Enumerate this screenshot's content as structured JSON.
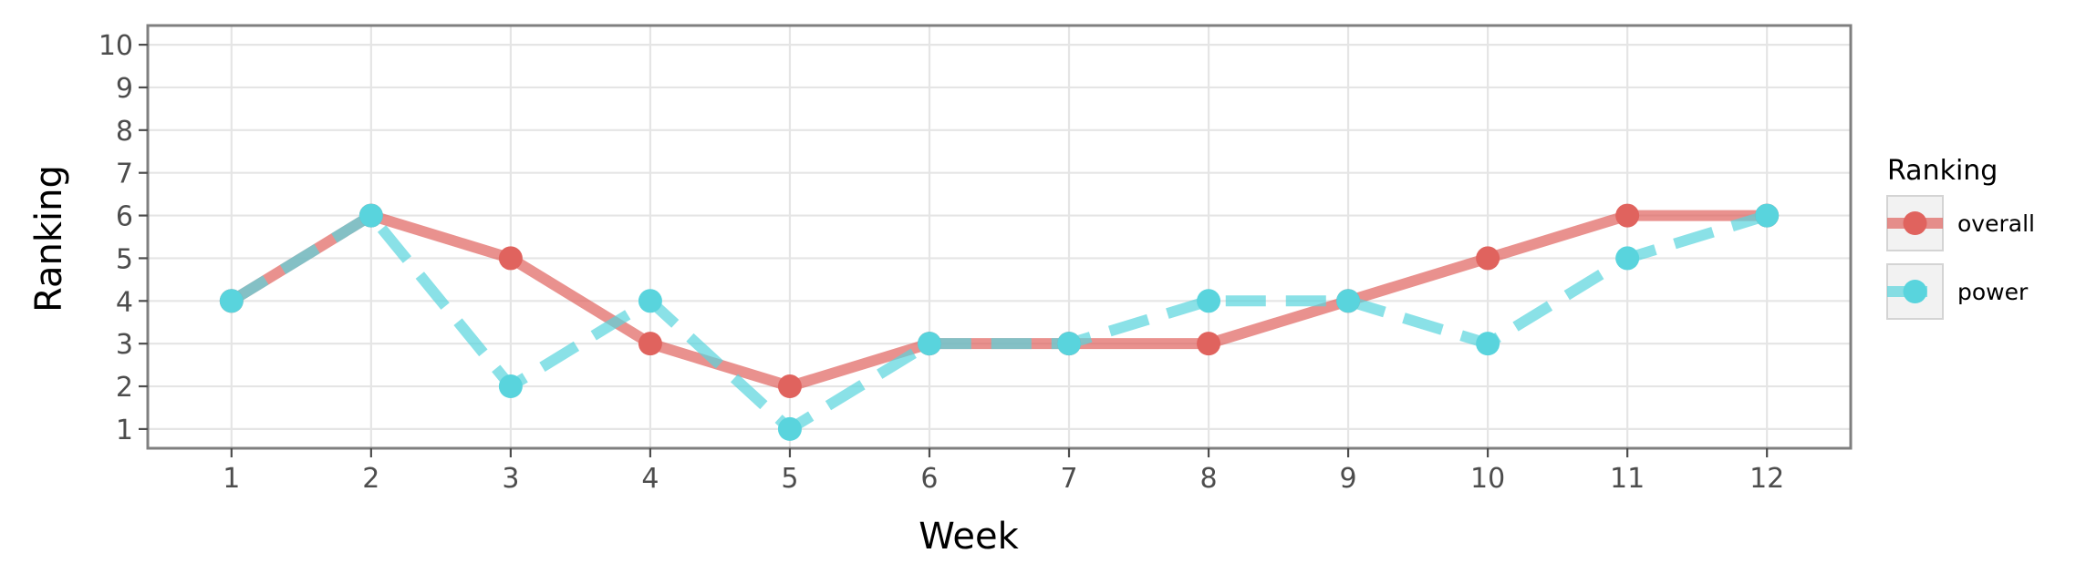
{
  "chart_data": {
    "type": "line",
    "xlabel": "Week",
    "ylabel": "Ranking",
    "x": [
      1,
      2,
      3,
      4,
      5,
      6,
      7,
      8,
      9,
      10,
      11,
      12
    ],
    "x_ticks": [
      "1",
      "2",
      "3",
      "4",
      "5",
      "6",
      "7",
      "8",
      "9",
      "10",
      "11",
      "12"
    ],
    "y_ticks": [
      "1",
      "2",
      "3",
      "4",
      "5",
      "6",
      "7",
      "8",
      "9",
      "10"
    ],
    "xlim": [
      0.4,
      12.6
    ],
    "ylim": [
      10.45,
      0.55
    ],
    "y_reversed": true,
    "grid": true,
    "legend": {
      "title": "Ranking",
      "position": "right"
    },
    "series": [
      {
        "name": "overall",
        "color": "#E0635E",
        "line_style": "solid",
        "values": [
          4,
          6,
          5,
          3,
          2,
          3,
          3,
          3,
          4,
          5,
          6,
          6
        ]
      },
      {
        "name": "power",
        "color": "#59D4DD",
        "line_style": "dashed",
        "values": [
          4,
          6,
          2,
          4,
          1,
          3,
          3,
          4,
          4,
          3,
          5,
          6
        ]
      }
    ]
  }
}
